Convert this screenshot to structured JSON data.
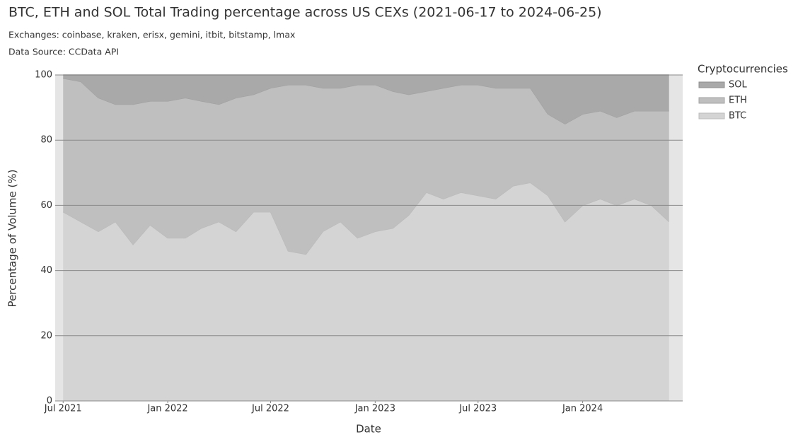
{
  "chart_data": {
    "type": "stacked_area",
    "title": "BTC, ETH and SOL Total Trading percentage across US CEXs (2021-06-17 to 2024-06-25)",
    "subtitle": "Exchanges: coinbase, kraken, erisx, gemini, itbit, bitstamp, lmax",
    "source": "Data Source: CCData API",
    "x_label": "Date",
    "y_label": "Percentage of Volume (%)",
    "legend_title": "Cryptocurrencies",
    "legend": "right",
    "grid": true,
    "x": [
      "2021-07",
      "2021-08",
      "2021-09",
      "2021-10",
      "2021-11",
      "2021-12",
      "2022-01",
      "2022-02",
      "2022-03",
      "2022-04",
      "2022-05",
      "2022-06",
      "2022-07",
      "2022-08",
      "2022-09",
      "2022-10",
      "2022-11",
      "2022-12",
      "2023-01",
      "2023-02",
      "2023-03",
      "2023-04",
      "2023-05",
      "2023-06",
      "2023-07",
      "2023-08",
      "2023-09",
      "2023-10",
      "2023-11",
      "2023-12",
      "2024-01",
      "2024-02",
      "2024-03",
      "2024-04",
      "2024-05",
      "2024-06"
    ],
    "series": [
      {
        "name": "BTC",
        "color": "#d4d4d4",
        "line": "#bbbbbb",
        "values": [
          58,
          55,
          52,
          55,
          48,
          54,
          50,
          50,
          53,
          55,
          52,
          58,
          58,
          46,
          45,
          52,
          55,
          50,
          52,
          53,
          57,
          64,
          62,
          64,
          63,
          62,
          66,
          67,
          63,
          55,
          60,
          62,
          60,
          62,
          60,
          55
        ]
      },
      {
        "name": "ETH",
        "color": "#bfbfbf",
        "line": "#a3a3a3",
        "values": [
          41,
          43,
          41,
          36,
          43,
          38,
          42,
          43,
          39,
          36,
          41,
          36,
          38,
          51,
          52,
          44,
          41,
          47,
          45,
          42,
          37,
          31,
          34,
          33,
          34,
          34,
          30,
          29,
          25,
          30,
          28,
          27,
          27,
          27,
          29,
          34
        ]
      },
      {
        "name": "SOL",
        "color": "#a9a9a9",
        "line": "#8f8f8f",
        "values": [
          1,
          2,
          7,
          9,
          9,
          8,
          8,
          7,
          8,
          9,
          7,
          6,
          4,
          3,
          3,
          4,
          4,
          3,
          3,
          5,
          6,
          5,
          4,
          3,
          3,
          4,
          4,
          4,
          12,
          15,
          12,
          11,
          13,
          11,
          11,
          11
        ]
      }
    ],
    "xlim": [
      "2021-06-17",
      "2024-06-25"
    ],
    "xticks": [
      {
        "value": "2021-07",
        "label": "Jul 2021"
      },
      {
        "value": "2022-01",
        "label": "Jan 2022"
      },
      {
        "value": "2022-07",
        "label": "Jul 2022"
      },
      {
        "value": "2023-01",
        "label": "Jan 2023"
      },
      {
        "value": "2023-07",
        "label": "Jul 2023"
      },
      {
        "value": "2024-01",
        "label": "Jan 2024"
      }
    ],
    "ylim": [
      0,
      100
    ],
    "yticks": [
      0,
      20,
      40,
      60,
      80,
      100
    ]
  }
}
